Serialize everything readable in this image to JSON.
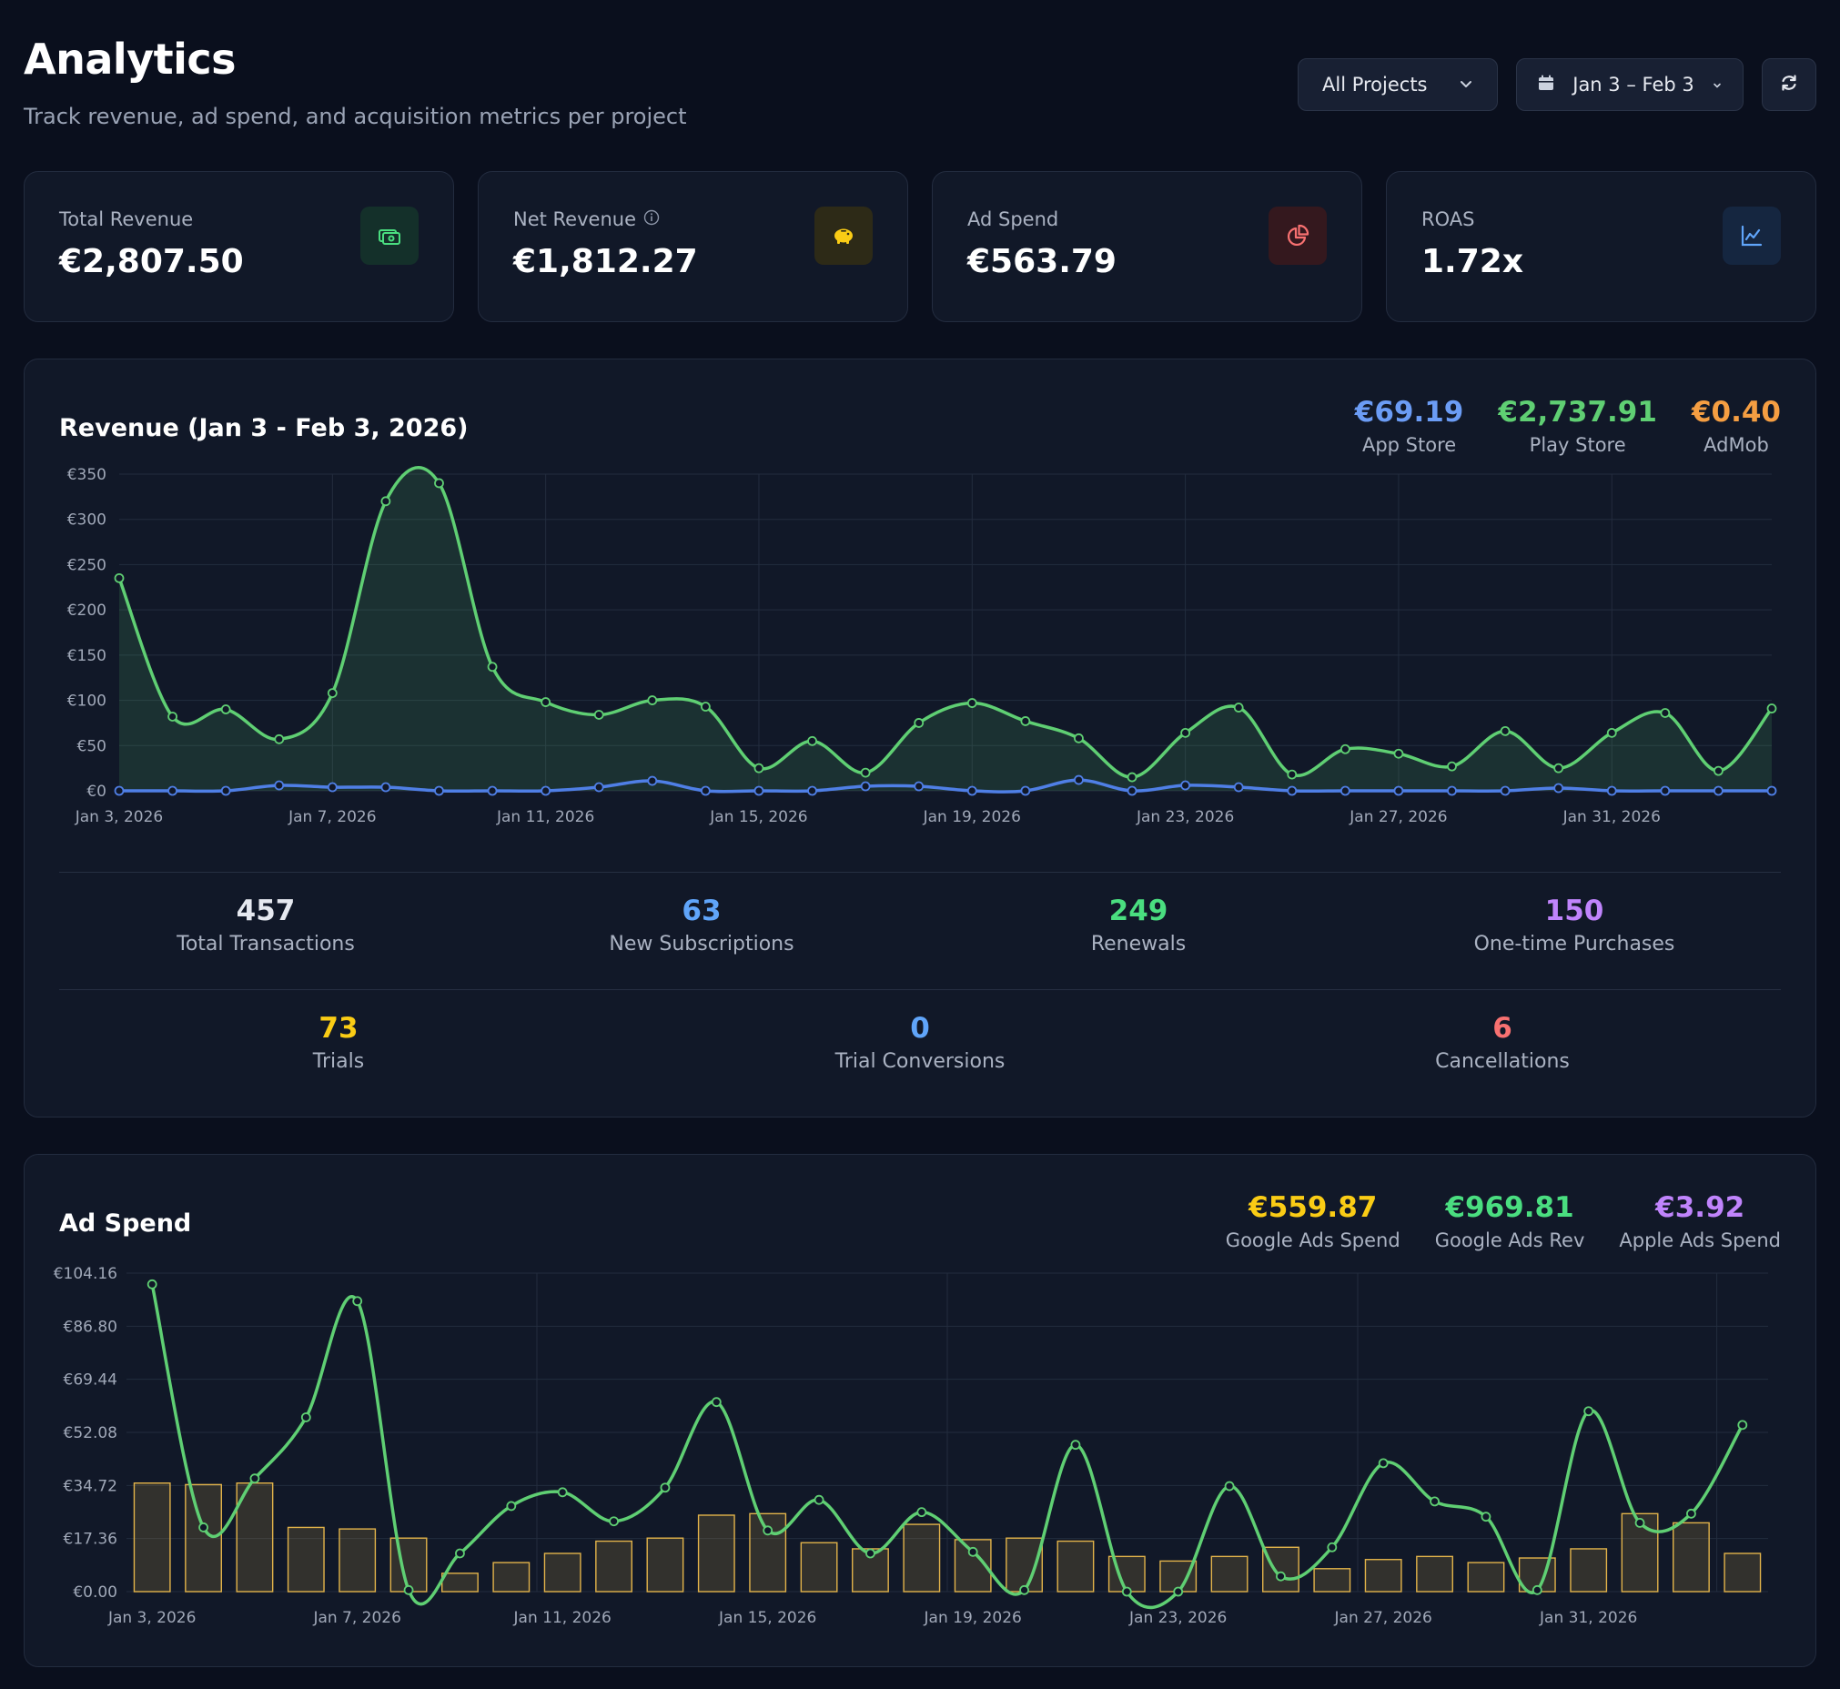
{
  "header": {
    "title": "Analytics",
    "subtitle": "Track revenue, ad spend, and acquisition metrics per project"
  },
  "controls": {
    "project_select": "All Projects",
    "date_range": "Jan 3 – Feb 3"
  },
  "kpis": [
    {
      "label": "Total Revenue",
      "value": "€2,807.50",
      "icon": "cash-icon",
      "color": "#4ade80"
    },
    {
      "label": "Net Revenue",
      "value": "€1,812.27",
      "icon": "piggy-bank-icon",
      "color": "#facc15"
    },
    {
      "label": "Ad Spend",
      "value": "€563.79",
      "icon": "pie-chart-icon",
      "color": "#f87171"
    },
    {
      "label": "ROAS",
      "value": "1.72x",
      "icon": "line-chart-icon",
      "color": "#60a5fa"
    }
  ],
  "revenue": {
    "title": "Revenue (Jan 3 - Feb 3, 2026)",
    "stats": [
      {
        "value": "€69.19",
        "label": "App Store",
        "color": "#6b9cf5"
      },
      {
        "value": "€2,737.91",
        "label": "Play Store",
        "color": "#5fcf73"
      },
      {
        "value": "€0.40",
        "label": "AdMob",
        "color": "#f59e42"
      }
    ],
    "metrics_row1": [
      {
        "value": "457",
        "label": "Total Transactions",
        "color": "#e6e9f0"
      },
      {
        "value": "63",
        "label": "New Subscriptions",
        "color": "#60a5fa"
      },
      {
        "value": "249",
        "label": "Renewals",
        "color": "#4ade80"
      },
      {
        "value": "150",
        "label": "One-time Purchases",
        "color": "#c084fc"
      }
    ],
    "metrics_row2": [
      {
        "value": "73",
        "label": "Trials",
        "color": "#facc15"
      },
      {
        "value": "0",
        "label": "Trial Conversions",
        "color": "#60a5fa"
      },
      {
        "value": "6",
        "label": "Cancellations",
        "color": "#f87171"
      }
    ]
  },
  "adspend": {
    "title": "Ad Spend",
    "stats": [
      {
        "value": "€559.87",
        "label": "Google Ads Spend",
        "color": "#facc15"
      },
      {
        "value": "€969.81",
        "label": "Google Ads Rev",
        "color": "#4ade80"
      },
      {
        "value": "€3.92",
        "label": "Apple Ads Spend",
        "color": "#c084fc"
      }
    ]
  },
  "chart_data": [
    {
      "type": "line",
      "yticks": [
        "€350",
        "€300",
        "€250",
        "€200",
        "€150",
        "€100",
        "€50",
        "€0"
      ],
      "ylim": [
        0,
        350
      ],
      "xtick_labels": [
        "Jan 3, 2026",
        "Jan 7, 2026",
        "Jan 11, 2026",
        "Jan 15, 2026",
        "Jan 19, 2026",
        "Jan 23, 2026",
        "Jan 27, 2026",
        "Jan 31, 2026"
      ],
      "xtick_index": [
        0,
        4,
        8,
        12,
        16,
        20,
        24,
        28
      ],
      "series": [
        {
          "color": "#5fcf73",
          "fill": true,
          "values": [
            235,
            82,
            90,
            57,
            108,
            320,
            340,
            137,
            98,
            84,
            100,
            93,
            25,
            55,
            20,
            75,
            97,
            77,
            58,
            15,
            64,
            92,
            18,
            46,
            41,
            27,
            66,
            25,
            64,
            86,
            22,
            91
          ]
        },
        {
          "color": "#4f7fe6",
          "fill": false,
          "values": [
            0,
            0,
            0,
            6,
            4,
            4,
            0,
            0,
            0,
            4,
            11,
            0,
            0,
            0,
            5,
            5,
            0,
            0,
            12,
            0,
            6,
            4,
            0,
            0,
            0,
            0,
            0,
            3,
            0,
            0,
            0,
            0
          ]
        }
      ]
    },
    {
      "type": "bar",
      "yticks": [
        "€104.16",
        "€86.80",
        "€69.44",
        "€52.08",
        "€34.72",
        "€17.36",
        "€0.00"
      ],
      "ylim": [
        0,
        104.16
      ],
      "xtick_labels": [
        "Jan 3, 2026",
        "Jan 7, 2026",
        "Jan 11, 2026",
        "Jan 15, 2026",
        "Jan 19, 2026",
        "Jan 23, 2026",
        "Jan 27, 2026",
        "Jan 31, 2026"
      ],
      "xtick_index": [
        0,
        4,
        8,
        12,
        16,
        20,
        24,
        28
      ],
      "bars": {
        "color": "#e2b34a",
        "values": [
          35.5,
          35,
          35.5,
          21,
          20.5,
          17.5,
          6,
          9.5,
          12.5,
          16.5,
          17.5,
          25,
          25.5,
          16,
          14,
          22,
          17,
          17.5,
          16.5,
          11.5,
          10,
          11.5,
          14.5,
          7.5,
          10.5,
          11.5,
          9.5,
          11,
          14,
          25.5,
          22.5,
          12.5
        ]
      },
      "line": {
        "color": "#5fcf73",
        "values": [
          100.5,
          21,
          37,
          57,
          95,
          0.5,
          12.5,
          28,
          32.5,
          23,
          34,
          62,
          20,
          30,
          12.5,
          26,
          13,
          0.5,
          48,
          0,
          0,
          34.5,
          5,
          14.5,
          42,
          29.5,
          24.5,
          0.5,
          59,
          22.5,
          25.5,
          54.5
        ]
      }
    }
  ]
}
